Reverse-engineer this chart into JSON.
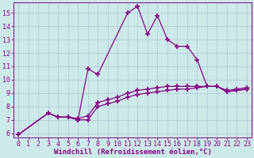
{
  "xlabel": "Windchill (Refroidissement éolien,°C)",
  "xlim": [
    -0.5,
    23.5
  ],
  "ylim": [
    5.7,
    15.8
  ],
  "yticks": [
    6,
    7,
    8,
    9,
    10,
    11,
    12,
    13,
    14,
    15
  ],
  "xticks": [
    0,
    1,
    2,
    3,
    4,
    5,
    6,
    7,
    8,
    9,
    10,
    11,
    12,
    13,
    14,
    15,
    16,
    17,
    18,
    19,
    20,
    21,
    22,
    23
  ],
  "bg_color": "#cceae8",
  "line_color": "#880088",
  "grid_color": "#b0c4d8",
  "curves": [
    {
      "x": [
        0,
        3,
        4,
        5,
        6,
        7,
        8,
        11,
        12,
        13,
        14,
        15,
        16,
        17,
        18,
        19,
        20,
        21,
        22,
        23
      ],
      "y": [
        5.9,
        7.5,
        7.2,
        7.2,
        7.0,
        10.8,
        10.4,
        15.0,
        15.5,
        13.4,
        14.8,
        13.0,
        12.5,
        12.5,
        11.5,
        9.5,
        9.5,
        9.1,
        9.2,
        9.3
      ]
    },
    {
      "x": [
        0,
        3,
        4,
        5,
        6,
        7,
        8,
        9,
        10,
        11,
        12,
        13,
        14,
        15,
        16,
        17,
        18,
        19,
        20,
        21,
        22,
        23
      ],
      "y": [
        5.9,
        7.5,
        7.2,
        7.2,
        7.1,
        7.3,
        8.3,
        8.5,
        8.7,
        9.0,
        9.2,
        9.3,
        9.4,
        9.5,
        9.5,
        9.5,
        9.5,
        9.5,
        9.5,
        9.2,
        9.3,
        9.4
      ]
    },
    {
      "x": [
        0,
        3,
        4,
        5,
        6,
        7,
        8,
        9,
        10,
        11,
        12,
        13,
        14,
        15,
        16,
        17,
        18,
        19,
        20,
        21,
        22,
        23
      ],
      "y": [
        5.9,
        7.5,
        7.2,
        7.2,
        7.0,
        7.0,
        8.0,
        8.2,
        8.4,
        8.7,
        8.9,
        9.0,
        9.1,
        9.2,
        9.3,
        9.3,
        9.4,
        9.5,
        9.5,
        9.1,
        9.2,
        9.3
      ]
    }
  ],
  "marker": "+",
  "markersize": 4,
  "markeredgewidth": 1.2,
  "linewidth": 0.9,
  "xlabel_fontsize": 6.5,
  "tick_fontsize": 6,
  "spine_color": "#880088"
}
